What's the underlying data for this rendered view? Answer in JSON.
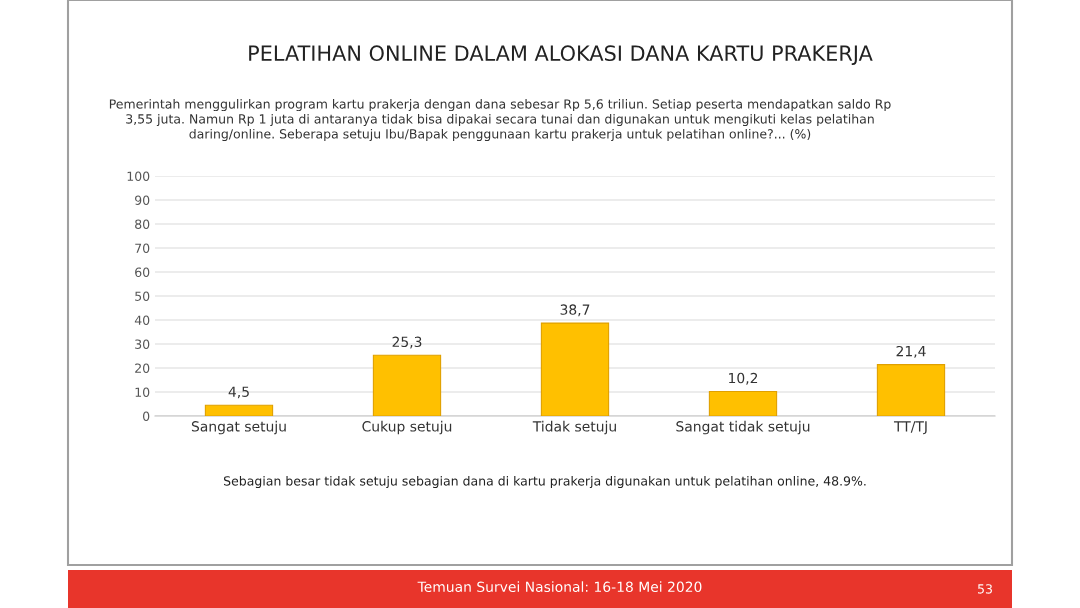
{
  "chart_data": {
    "type": "bar",
    "title": "PELATIHAN ONLINE DALAM ALOKASI DANA KARTU PRAKERJA",
    "subtitle": "Pemerintah menggulirkan program kartu prakerja dengan dana sebesar Rp 5,6 triliun. Setiap peserta mendapatkan saldo Rp\n3,55 juta. Namun Rp 1 juta di antaranya tidak bisa dipakai secara tunai dan digunakan untuk mengikuti kelas pelatihan\ndaring/online. Seberapa setuju Ibu/Bapak penggunaan kartu prakerja untuk pelatihan online?... (%)",
    "categories": [
      "Sangat setuju",
      "Cukup setuju",
      "Tidak setuju",
      "Sangat tidak setuju",
      "TT/TJ"
    ],
    "values": [
      4.5,
      25.3,
      38.7,
      10.2,
      21.4
    ],
    "value_labels": [
      "4,5",
      "25,3",
      "38,7",
      "10,2",
      "21,4"
    ],
    "color": "#ffc000",
    "ylim": [
      0,
      100
    ],
    "yticks": [
      0,
      10,
      20,
      30,
      40,
      50,
      60,
      70,
      80,
      90,
      100
    ],
    "grid": "y",
    "annotations": [
      "Sebagian besar tidak setuju sebagian dana di kartu prakerja digunakan untuk pelatihan online, 48.9%.",
      "Temuan Survei Nasional: 16-18 Mei 2020",
      "53"
    ]
  }
}
